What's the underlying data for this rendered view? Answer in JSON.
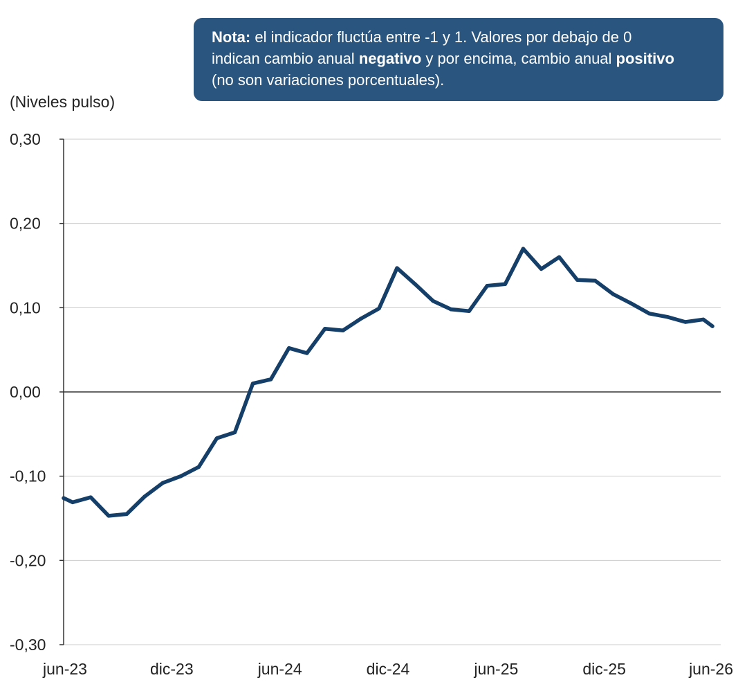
{
  "note": {
    "label": "Nota:",
    "line1": " el indicador fluctúa entre -1 y 1. Valores por debajo de 0",
    "line2a": "indican cambio anual ",
    "bold1": "negativo",
    "line2b": " y por encima, cambio anual ",
    "bold2": "positivo",
    "line3": "(no son variaciones porcentuales)."
  },
  "colors": {
    "line": "#153f68",
    "note_bg": "#2a557f",
    "grid": "#cccccc",
    "axis": "#333333"
  },
  "chart_data": {
    "type": "line",
    "title": "",
    "xlabel": "",
    "ylabel": "(Niveles pulso)",
    "ylim": [
      -0.3,
      0.3
    ],
    "yticks": [
      0.3,
      0.2,
      0.1,
      0.0,
      -0.1,
      -0.2,
      -0.3
    ],
    "ytick_labels": [
      "0,30",
      "0,20",
      "0,10",
      "0,00",
      "-0,10",
      "-0,20",
      "-0,30"
    ],
    "xlim": [
      0,
      36
    ],
    "xticks": [
      0,
      6,
      12,
      18,
      24,
      30,
      36
    ],
    "xtick_labels": [
      "jun-23",
      "dic-23",
      "jun-24",
      "dic-24",
      "jun-25",
      "dic-25",
      "jun-26"
    ],
    "grid": true,
    "series": [
      {
        "name": "",
        "x": [
          0,
          0.5,
          1.5,
          2.5,
          3.5,
          4.5,
          5.5,
          6.5,
          7.5,
          8.5,
          9.5,
          10.5,
          11.5,
          12.5,
          13.5,
          14.5,
          15.5,
          16.5,
          17.5,
          18.5,
          19.5,
          20.5,
          21.5,
          22.5,
          23.5,
          24.5,
          25.5,
          26.5,
          27.5,
          28.5,
          29.5,
          30.5,
          31.5,
          32.5,
          33.5,
          34.5,
          35.5,
          36
        ],
        "y": [
          -0.126,
          -0.131,
          -0.125,
          -0.147,
          -0.145,
          -0.124,
          -0.108,
          -0.1,
          -0.089,
          -0.055,
          -0.048,
          0.01,
          0.015,
          0.052,
          0.046,
          0.075,
          0.073,
          0.087,
          0.099,
          0.147,
          0.128,
          0.108,
          0.098,
          0.096,
          0.126,
          0.128,
          0.17,
          0.146,
          0.16,
          0.133,
          0.132,
          0.116,
          0.105,
          0.093,
          0.089,
          0.083,
          0.086,
          0.078
        ]
      }
    ]
  }
}
